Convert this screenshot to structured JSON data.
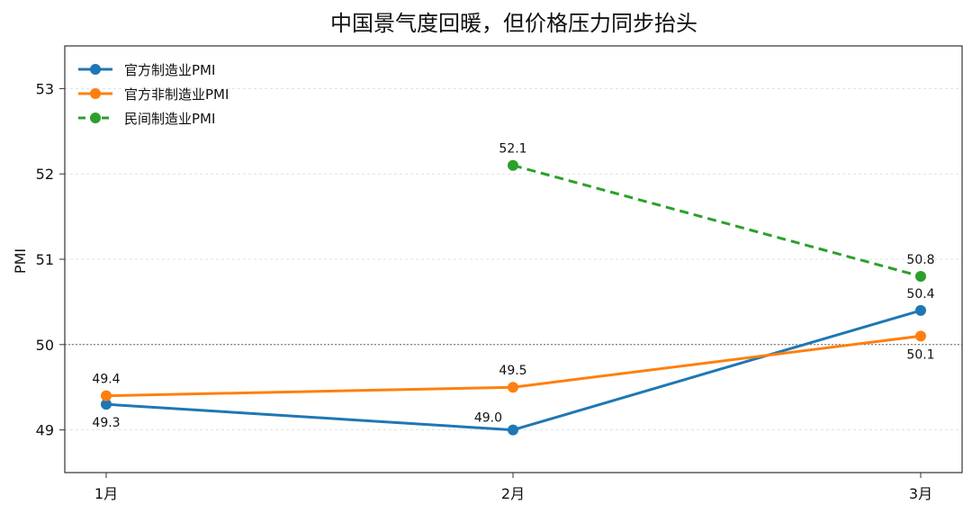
{
  "chart_data": {
    "type": "line",
    "title": "中国景气度回暖，但价格压力同步抬头",
    "xlabel": "",
    "ylabel": "PMI",
    "categories": [
      "1月",
      "2月",
      "3月"
    ],
    "ylim": [
      48.5,
      53.5
    ],
    "yticks": [
      49,
      50,
      51,
      52,
      53
    ],
    "reference_line": 50,
    "grid": true,
    "legend_position": "top-left",
    "series": [
      {
        "name": "官方制造业PMI",
        "color": "#1f77b4",
        "dash": "solid",
        "values": [
          49.3,
          49.0,
          50.4
        ],
        "labels": [
          "49.3",
          "49.0",
          "50.4"
        ],
        "label_pos": [
          "below",
          "left",
          "above"
        ]
      },
      {
        "name": "官方非制造业PMI",
        "color": "#ff7f0e",
        "dash": "solid",
        "values": [
          49.4,
          49.5,
          50.1
        ],
        "labels": [
          "49.4",
          "49.5",
          "50.1"
        ],
        "label_pos": [
          "above",
          "above",
          "below"
        ]
      },
      {
        "name": "民间制造业PMI",
        "color": "#2ca02c",
        "dash": "dashed",
        "values": [
          null,
          52.1,
          50.8
        ],
        "labels": [
          null,
          "52.1",
          "50.8"
        ],
        "label_pos": [
          null,
          "above",
          "above"
        ]
      }
    ]
  }
}
